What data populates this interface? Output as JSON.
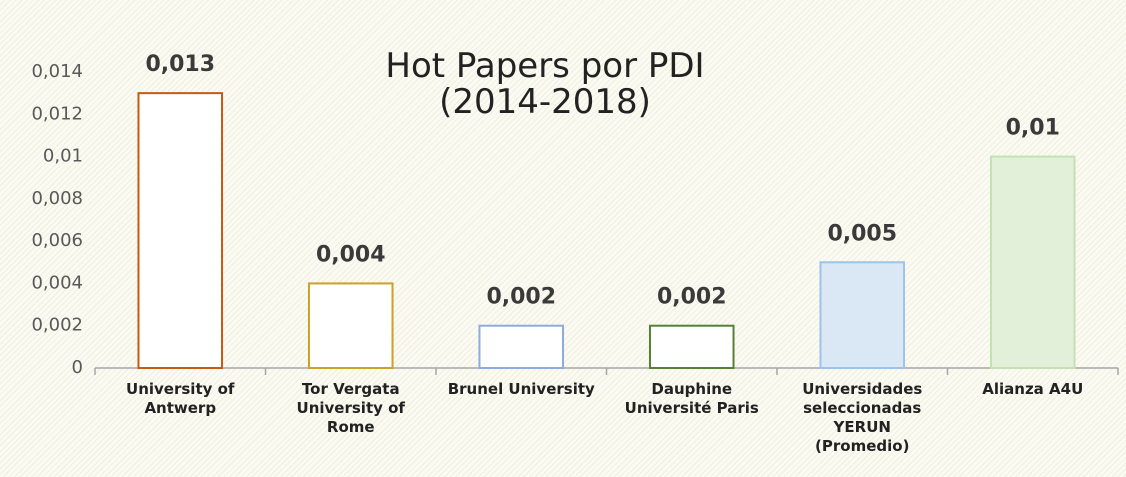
{
  "chart_data": {
    "type": "bar",
    "title": "Hot Papers por PDI (2014-2018)",
    "categories": [
      "University of Antwerp",
      "Tor Vergata University of Rome",
      "Brunel University",
      "Dauphine Université Paris",
      "Universidades seleccionadas YERUN (Promedio)",
      "Alianza A4U"
    ],
    "values": [
      0.013,
      0.004,
      0.002,
      0.002,
      0.005,
      0.01
    ],
    "value_labels": [
      "0,013",
      "0,004",
      "0,002",
      "0,002",
      "0,005",
      "0,01"
    ],
    "colors": [
      "#c55a11",
      "#c9a227",
      "#8faadc",
      "#548235",
      "#9dc3e6",
      "#c5e0b4"
    ],
    "fills": [
      "#ffffff",
      "#ffffff",
      "#ffffff",
      "#ffffff",
      "#dae8f6",
      "#e2f0d9"
    ],
    "ylim": [
      0,
      0.014
    ],
    "yticks": [
      0,
      {
        "value": 0.002,
        "label": "0,002"
      },
      {
        "value": 0.004,
        "label": "0,004"
      },
      {
        "value": 0.006,
        "label": "0,006"
      },
      {
        "value": 0.008,
        "label": "0,008"
      },
      {
        "value": 0.01,
        "label": "0,01"
      },
      {
        "value": 0.012,
        "label": "0,012"
      },
      {
        "value": 0.014,
        "label": "0,014"
      }
    ],
    "grid": false
  }
}
